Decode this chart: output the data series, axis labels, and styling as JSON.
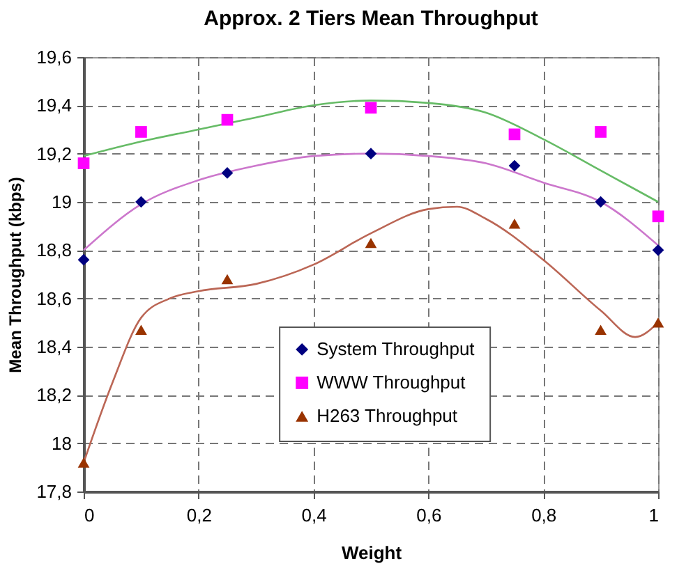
{
  "chart_data": {
    "type": "scatter",
    "title": "Approx. 2 Tiers Mean Throughput",
    "xlabel": "Weight",
    "ylabel": "Mean Throughput (kbps)",
    "x": [
      0,
      0.1,
      0.25,
      0.5,
      0.75,
      0.9,
      1
    ],
    "series": [
      {
        "name": "System Throughput",
        "color": "#000080",
        "marker": "diamond",
        "values": [
          18.76,
          19.0,
          19.12,
          19.2,
          19.15,
          19.0,
          18.8
        ]
      },
      {
        "name": "WWW Throughput",
        "color": "#ff00ff",
        "marker": "square",
        "values": [
          19.16,
          19.29,
          19.34,
          19.39,
          19.28,
          19.29,
          18.94
        ]
      },
      {
        "name": "H263 Throughput",
        "color": "#993300",
        "marker": "triangle",
        "values": [
          17.92,
          18.47,
          18.68,
          18.83,
          18.91,
          18.47,
          18.5
        ]
      },
      {
        "type": "line",
        "color": "#cc77cc",
        "x": [
          0,
          0.1,
          0.2,
          0.3,
          0.4,
          0.5,
          0.6,
          0.7,
          0.8,
          0.9,
          1
        ],
        "values": [
          18.8,
          18.99,
          19.09,
          19.15,
          19.19,
          19.2,
          19.19,
          19.16,
          19.08,
          19.0,
          18.82
        ]
      },
      {
        "type": "line",
        "color": "#66bb66",
        "x": [
          0,
          0.1,
          0.2,
          0.3,
          0.4,
          0.5,
          0.6,
          0.7,
          0.8,
          0.9,
          1
        ],
        "values": [
          19.19,
          19.25,
          19.3,
          19.35,
          19.4,
          19.42,
          19.41,
          19.37,
          19.26,
          19.13,
          19.0
        ]
      },
      {
        "type": "line",
        "color": "#bb6655",
        "x": [
          0,
          0.05,
          0.1,
          0.15,
          0.2,
          0.3,
          0.4,
          0.5,
          0.6,
          0.65,
          0.7,
          0.8,
          0.9,
          0.96,
          1
        ],
        "values": [
          17.92,
          18.25,
          18.52,
          18.6,
          18.63,
          18.66,
          18.74,
          18.87,
          18.97,
          18.98,
          18.93,
          18.76,
          18.55,
          18.44,
          18.5
        ]
      }
    ],
    "xlim": [
      0,
      1
    ],
    "xticks": [
      0,
      {
        "value": 0.2,
        "label": "0,2"
      },
      {
        "value": 0.4,
        "label": "0,4"
      },
      {
        "value": 0.6,
        "label": "0,6"
      },
      {
        "value": 0.8,
        "label": "0,8"
      },
      1
    ],
    "ylim": [
      17.8,
      19.6
    ],
    "yticks": [
      {
        "value": 17.8,
        "label": "17,8"
      },
      18,
      {
        "value": 18.2,
        "label": "18,2"
      },
      {
        "value": 18.4,
        "label": "18,4"
      },
      {
        "value": 18.6,
        "label": "18,6"
      },
      {
        "value": 18.8,
        "label": "18,8"
      },
      19,
      {
        "value": 19.2,
        "label": "19,2"
      },
      {
        "value": 19.4,
        "label": "19,4"
      },
      {
        "value": 19.6,
        "label": "19,6"
      }
    ],
    "grid": true,
    "legend": "bottom"
  }
}
